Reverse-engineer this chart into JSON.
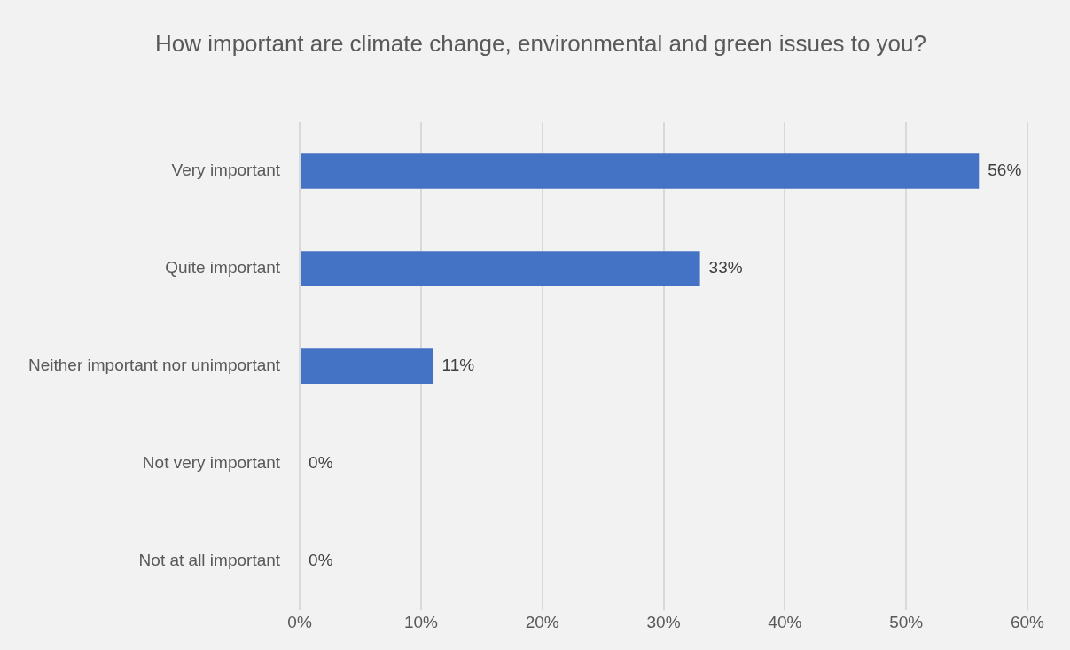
{
  "chart_data": {
    "type": "bar",
    "orientation": "horizontal",
    "title": "How important are climate change, environmental and green issues to you?",
    "categories": [
      "Very important",
      "Quite important",
      "Neither important nor unimportant",
      "Not very important",
      "Not at all important"
    ],
    "values": [
      56,
      33,
      11,
      0,
      0
    ],
    "value_labels": [
      "56%",
      "33%",
      "11%",
      "0%",
      "0%"
    ],
    "color": "#4472c4",
    "xlim": [
      0,
      60
    ],
    "xticks": [
      {
        "value": 0,
        "label": "0%"
      },
      {
        "value": 10,
        "label": "10%"
      },
      {
        "value": 20,
        "label": "20%"
      },
      {
        "value": 30,
        "label": "30%"
      },
      {
        "value": 40,
        "label": "40%"
      },
      {
        "value": 50,
        "label": "50%"
      },
      {
        "value": 60,
        "label": "60%"
      }
    ],
    "grid": "x",
    "legend": false
  }
}
